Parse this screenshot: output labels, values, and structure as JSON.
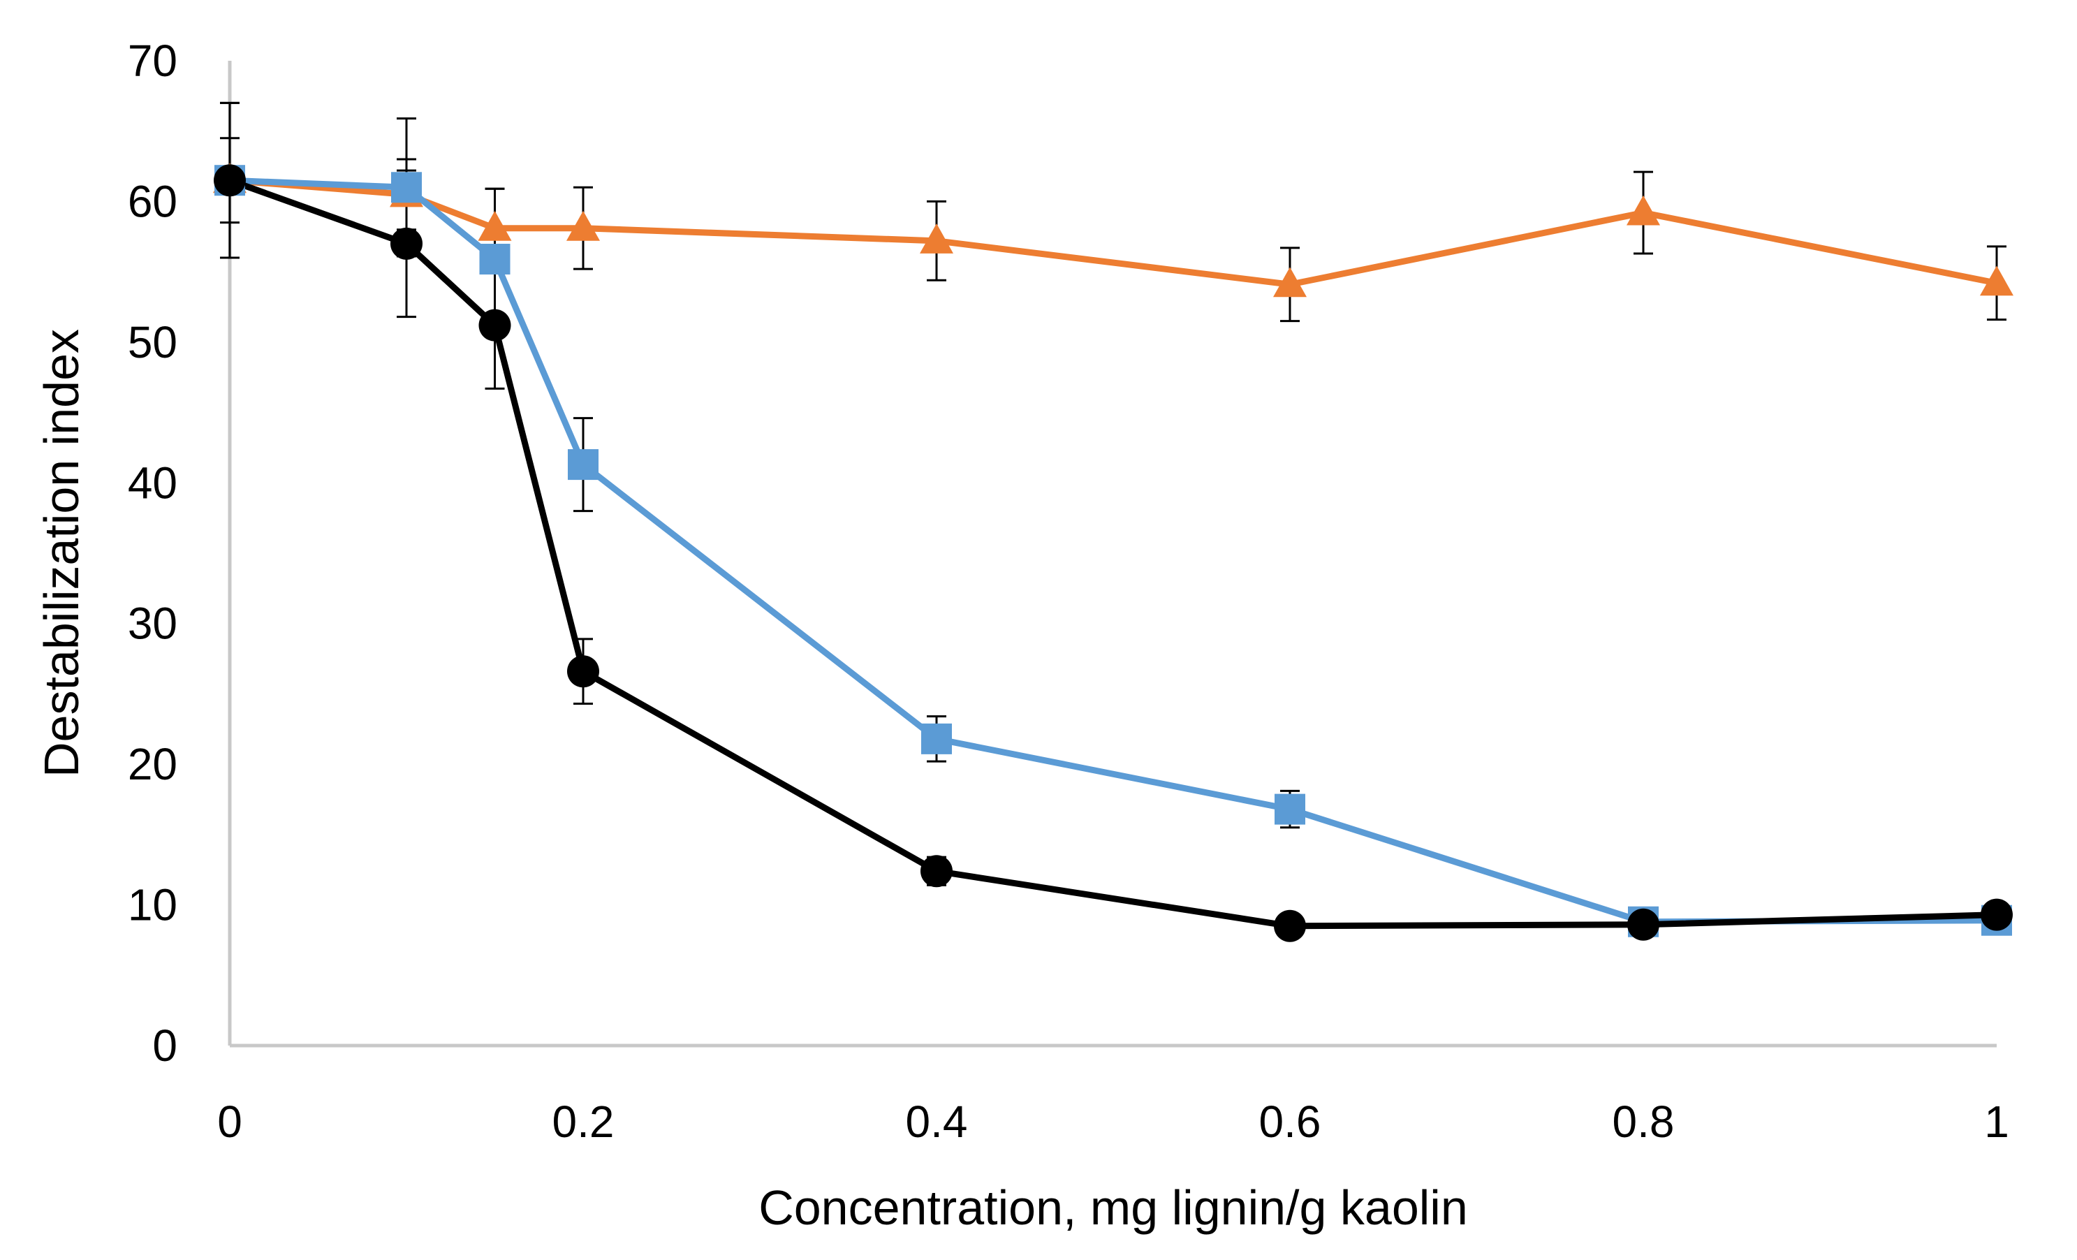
{
  "chart_data": {
    "type": "line",
    "title": "",
    "xlabel": "Concentration, mg lignin/g kaolin",
    "ylabel": "Destabilization index",
    "xlim": [
      0,
      1
    ],
    "ylim": [
      0,
      70
    ],
    "x_ticks": [
      "0",
      "0.2",
      "0.4",
      "0.6",
      "0.8",
      "1"
    ],
    "y_ticks": [
      "0",
      "10",
      "20",
      "30",
      "40",
      "50",
      "60",
      "70"
    ],
    "x_tick_values": [
      0,
      0.2,
      0.4,
      0.6,
      0.8,
      1
    ],
    "y_tick_values": [
      0,
      10,
      20,
      30,
      40,
      50,
      60,
      70
    ],
    "grid": false,
    "legend": "none",
    "series": [
      {
        "marker": "triangle",
        "color": "#ED7D31",
        "x": [
          0,
          0.1,
          0.15,
          0.2,
          0.4,
          0.6,
          0.8,
          1
        ],
        "y": [
          61.5,
          60.5,
          58.1,
          58.1,
          57.2,
          54.1,
          59.2,
          54.2
        ],
        "err": [
          5.5,
          2.5,
          2.8,
          2.9,
          2.8,
          2.6,
          2.9,
          2.6
        ]
      },
      {
        "marker": "square",
        "color": "#5B9BD5",
        "x": [
          0,
          0.1,
          0.15,
          0.2,
          0.4,
          0.6,
          0.8,
          1
        ],
        "y": [
          61.5,
          61.0,
          55.9,
          41.3,
          21.8,
          16.8,
          8.8,
          8.9
        ],
        "err": [
          3.0,
          4.9,
          5.0,
          3.3,
          1.6,
          1.3,
          0.4,
          0.4
        ]
      },
      {
        "marker": "circle",
        "color": "#000000",
        "x": [
          0,
          0.1,
          0.15,
          0.2,
          0.4,
          0.6,
          0.8,
          1
        ],
        "y": [
          61.5,
          57.0,
          51.2,
          26.6,
          12.4,
          8.5,
          8.6,
          9.3
        ],
        "err": [
          5.5,
          5.2,
          4.5,
          2.3,
          1.0,
          0.4,
          0.4,
          0.4
        ]
      }
    ]
  }
}
